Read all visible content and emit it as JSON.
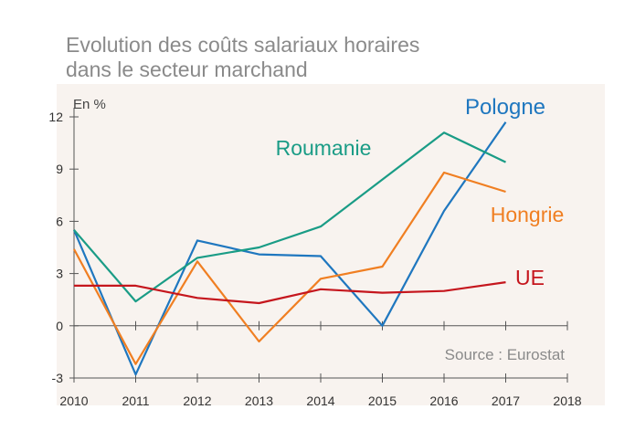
{
  "title_line1": "Evolution des coûts salariaux horaires",
  "title_line2": "dans le secteur marchand",
  "source": "Source : Eurostat",
  "chart_data": {
    "type": "line",
    "title": "Evolution des coûts salariaux horaires dans le secteur marchand",
    "ylabel": "En %",
    "xlabel": "",
    "x": [
      2010,
      2011,
      2012,
      2013,
      2014,
      2015,
      2016,
      2017
    ],
    "xticks": [
      "2010",
      "2011",
      "2012",
      "2013",
      "2014",
      "2015",
      "2016",
      "2017",
      "2018"
    ],
    "xlim": [
      2010,
      2018
    ],
    "yticks": [
      "-3",
      "0",
      "3",
      "6",
      "9",
      "12"
    ],
    "ylim": [
      -3,
      12
    ],
    "grid": false,
    "series": [
      {
        "name": "Pologne",
        "color": "#1f77bf",
        "values": [
          5.5,
          -2.8,
          4.9,
          4.1,
          4.0,
          0.0,
          6.6,
          11.7
        ]
      },
      {
        "name": "Roumanie",
        "color": "#1a9c86",
        "values": [
          5.5,
          1.4,
          3.9,
          4.5,
          5.7,
          8.4,
          11.1,
          9.4
        ]
      },
      {
        "name": "Hongrie",
        "color": "#f07f22",
        "values": [
          4.4,
          -2.2,
          3.7,
          -0.9,
          2.7,
          3.4,
          8.8,
          7.7
        ]
      },
      {
        "name": "UE",
        "color": "#c5161d",
        "values": [
          2.3,
          2.3,
          1.6,
          1.3,
          2.1,
          1.9,
          2.0,
          2.5
        ]
      }
    ]
  }
}
